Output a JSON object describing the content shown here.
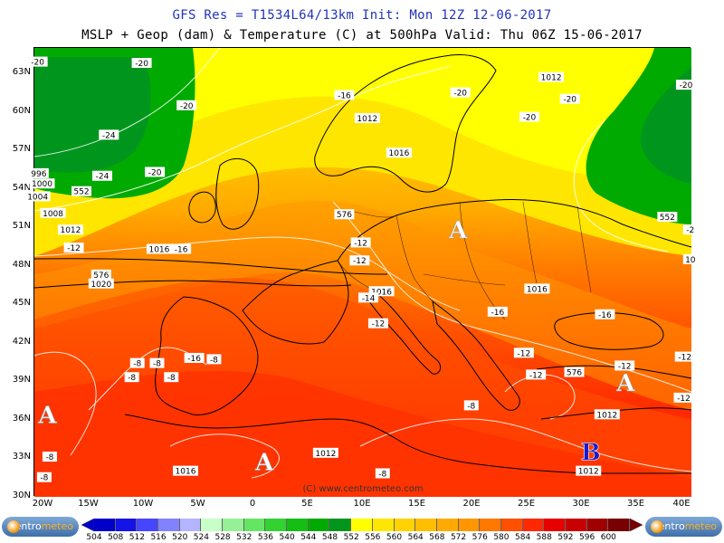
{
  "header": {
    "line1": "GFS Res = T1534L64/13km    Init: Mon 12Z 12-06-2017",
    "line2": "MSLP + Geop (dam) & Temperature (C) at 500hPa  Valid: Thu 06Z 15-06-2017"
  },
  "axes": {
    "lat_labels": [
      "63N",
      "60N",
      "57N",
      "54N",
      "51N",
      "48N",
      "45N",
      "42N",
      "39N",
      "36N",
      "33N",
      "30N"
    ],
    "lon_labels": [
      "20W",
      "15W",
      "10W",
      "5W",
      "0",
      "5E",
      "10E",
      "15E",
      "20E",
      "25E",
      "30E",
      "35E",
      "40E"
    ]
  },
  "map": {
    "high_symbols": [
      {
        "text": "A",
        "lon": 18.7,
        "lat": 50.8
      },
      {
        "text": "A",
        "lon": -18.8,
        "lat": 36.4
      },
      {
        "text": "A",
        "lon": 1,
        "lat": 32.7
      },
      {
        "text": "A",
        "lon": 34,
        "lat": 38.9
      }
    ],
    "low_symbols": [
      {
        "text": "B",
        "lon": 30.8,
        "lat": 33.5
      }
    ],
    "isobar_labels": [
      {
        "text": "1012",
        "lon": 27.2,
        "lat": 62.7
      },
      {
        "text": "1012",
        "lon": 10.4,
        "lat": 59.5
      },
      {
        "text": "1016",
        "lon": 13.3,
        "lat": 56.8
      },
      {
        "text": "996",
        "lon": -19.6,
        "lat": 55.2
      },
      {
        "text": "1000",
        "lon": -19.3,
        "lat": 54.4
      },
      {
        "text": "1004",
        "lon": -19.7,
        "lat": 53.4
      },
      {
        "text": "1008",
        "lon": -18.3,
        "lat": 52.1
      },
      {
        "text": "1012",
        "lon": -16.7,
        "lat": 50.8
      },
      {
        "text": "1016",
        "lon": -8.6,
        "lat": 49.3
      },
      {
        "text": "1020",
        "lon": -13.9,
        "lat": 46.6
      },
      {
        "text": "1016",
        "lon": 11.7,
        "lat": 46.0
      },
      {
        "text": "1016",
        "lon": 25.9,
        "lat": 46.2
      },
      {
        "text": "1012",
        "lon": 32.3,
        "lat": 36.4
      },
      {
        "text": "1012",
        "lon": 30.6,
        "lat": 32.0
      },
      {
        "text": "1012",
        "lon": 6.6,
        "lat": 33.4
      },
      {
        "text": "1016",
        "lon": -6.2,
        "lat": 32.0
      }
    ],
    "geop_labels": [
      {
        "text": "552",
        "lon": -15.7,
        "lat": 53.8
      },
      {
        "text": "576",
        "lon": 8.3,
        "lat": 52.0
      },
      {
        "text": "576",
        "lon": -13.9,
        "lat": 47.3
      },
      {
        "text": "552",
        "lon": 37.8,
        "lat": 51.8
      },
      {
        "text": "576",
        "lon": 29.3,
        "lat": 39.7
      }
    ],
    "temp_labels": [
      {
        "text": "-20",
        "lon": -19.7,
        "lat": 63.9
      },
      {
        "text": "-20",
        "lon": -10.2,
        "lat": 63.8
      },
      {
        "text": "-20",
        "lon": -6.1,
        "lat": 60.5
      },
      {
        "text": "-24",
        "lon": -13.2,
        "lat": 58.2
      },
      {
        "text": "-24",
        "lon": -13.8,
        "lat": 55.0
      },
      {
        "text": "-20",
        "lon": -9.0,
        "lat": 55.3
      },
      {
        "text": "-16",
        "lon": 8.3,
        "lat": 61.3
      },
      {
        "text": "-20",
        "lon": 18.9,
        "lat": 61.5
      },
      {
        "text": "-20",
        "lon": 28.9,
        "lat": 61.0
      },
      {
        "text": "-20",
        "lon": 25.2,
        "lat": 59.6
      },
      {
        "text": "-20",
        "lon": 39.5,
        "lat": 62.1
      },
      {
        "text": "-12",
        "lon": -16.4,
        "lat": 49.4
      },
      {
        "text": "-16",
        "lon": -6.6,
        "lat": 49.3
      },
      {
        "text": "-12",
        "lon": 9.8,
        "lat": 49.8
      },
      {
        "text": "-12",
        "lon": 9.7,
        "lat": 48.4
      },
      {
        "text": "-14",
        "lon": 10.5,
        "lat": 45.5
      },
      {
        "text": "-12",
        "lon": 11.4,
        "lat": 43.5
      },
      {
        "text": "-16",
        "lon": 22.3,
        "lat": 44.4
      },
      {
        "text": "-16",
        "lon": 32.1,
        "lat": 44.2
      },
      {
        "text": "-12",
        "lon": 24.7,
        "lat": 41.2
      },
      {
        "text": "-12",
        "lon": 25.8,
        "lat": 39.5
      },
      {
        "text": "-12",
        "lon": 33.9,
        "lat": 40.2
      },
      {
        "text": "-12",
        "lon": 39.4,
        "lat": 40.9
      },
      {
        "text": "-16",
        "lon": -5.4,
        "lat": 40.8
      },
      {
        "text": "-8",
        "lon": -10.6,
        "lat": 40.4
      },
      {
        "text": "-8",
        "lon": -8.8,
        "lat": 40.4
      },
      {
        "text": "-8",
        "lon": -3.6,
        "lat": 40.7
      },
      {
        "text": "-8",
        "lon": -11.1,
        "lat": 39.3
      },
      {
        "text": "-8",
        "lon": -7.5,
        "lat": 39.3
      },
      {
        "text": "-8",
        "lon": 19.9,
        "lat": 37.1
      },
      {
        "text": "-8",
        "lon": -18.6,
        "lat": 33.1
      },
      {
        "text": "-8",
        "lon": -19.1,
        "lat": 31.5
      },
      {
        "text": "-8",
        "lon": 11.8,
        "lat": 31.8
      },
      {
        "text": "-12",
        "lon": 39.3,
        "lat": 37.7
      },
      {
        "text": "10",
        "lon": 39.9,
        "lat": 48.5
      },
      {
        "text": "-2",
        "lon": 39.9,
        "lat": 50.8
      }
    ],
    "watermark": "(C) www.centrometeo.com"
  },
  "legend": {
    "values": [
      "504",
      "508",
      "512",
      "516",
      "520",
      "524",
      "528",
      "532",
      "536",
      "540",
      "544",
      "548",
      "552",
      "556",
      "560",
      "564",
      "568",
      "572",
      "576",
      "580",
      "584",
      "588",
      "592",
      "596",
      "600"
    ],
    "colors": [
      "#0000c8",
      "#1414e6",
      "#4646ff",
      "#8282ff",
      "#b4b4ff",
      "#c8ffc8",
      "#96f096",
      "#64e664",
      "#32d232",
      "#14be14",
      "#00aa00",
      "#00961e",
      "#ffff00",
      "#ffe600",
      "#ffd200",
      "#ffbe00",
      "#ffaa00",
      "#ff9600",
      "#ff7800",
      "#ff5000",
      "#ff2800",
      "#e60000",
      "#c80000",
      "#a00000",
      "#780000"
    ],
    "logo_left": "centro",
    "logo_left_accent": "meteo",
    "logo_right": "centro",
    "logo_right_accent": "meteo"
  }
}
